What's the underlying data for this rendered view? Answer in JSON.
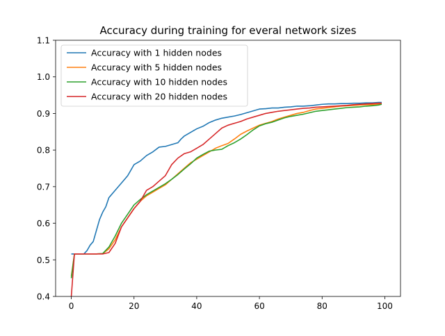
{
  "chart_data": {
    "type": "line",
    "title": "Accuracy during training for everal network sizes",
    "xlabel": "",
    "ylabel": "",
    "xlim": [
      -5,
      105
    ],
    "ylim": [
      0.4,
      1.1
    ],
    "x_ticks": [
      0,
      20,
      40,
      60,
      80,
      100
    ],
    "y_ticks": [
      0.4,
      0.5,
      0.6,
      0.7,
      0.8,
      0.9,
      1.0,
      1.1
    ],
    "x_tick_labels": [
      "0",
      "20",
      "40",
      "60",
      "80",
      "100"
    ],
    "y_tick_labels": [
      "0.4",
      "0.5",
      "0.6",
      "0.7",
      "0.8",
      "0.9",
      "1.0",
      "1.1"
    ],
    "grid": false,
    "legend_position": "upper-left",
    "series": [
      {
        "name": "Accuracy with 1 hidden nodes",
        "color": "#1f77b4",
        "points": [
          [
            0,
            0.516
          ],
          [
            2,
            0.516
          ],
          [
            4,
            0.516
          ],
          [
            5,
            0.525
          ],
          [
            6,
            0.54
          ],
          [
            7,
            0.55
          ],
          [
            8,
            0.58
          ],
          [
            9,
            0.61
          ],
          [
            10,
            0.63
          ],
          [
            11,
            0.645
          ],
          [
            12,
            0.67
          ],
          [
            14,
            0.69
          ],
          [
            16,
            0.71
          ],
          [
            18,
            0.73
          ],
          [
            19,
            0.745
          ],
          [
            20,
            0.76
          ],
          [
            22,
            0.77
          ],
          [
            24,
            0.785
          ],
          [
            26,
            0.795
          ],
          [
            28,
            0.808
          ],
          [
            30,
            0.81
          ],
          [
            32,
            0.815
          ],
          [
            34,
            0.82
          ],
          [
            35,
            0.83
          ],
          [
            36,
            0.838
          ],
          [
            38,
            0.848
          ],
          [
            40,
            0.858
          ],
          [
            42,
            0.865
          ],
          [
            44,
            0.875
          ],
          [
            46,
            0.882
          ],
          [
            48,
            0.887
          ],
          [
            50,
            0.89
          ],
          [
            52,
            0.893
          ],
          [
            54,
            0.897
          ],
          [
            56,
            0.902
          ],
          [
            58,
            0.907
          ],
          [
            60,
            0.912
          ],
          [
            62,
            0.913
          ],
          [
            64,
            0.915
          ],
          [
            66,
            0.915
          ],
          [
            68,
            0.917
          ],
          [
            70,
            0.918
          ],
          [
            72,
            0.92
          ],
          [
            74,
            0.92
          ],
          [
            76,
            0.921
          ],
          [
            78,
            0.923
          ],
          [
            80,
            0.925
          ],
          [
            82,
            0.926
          ],
          [
            84,
            0.926
          ],
          [
            86,
            0.927
          ],
          [
            88,
            0.927
          ],
          [
            90,
            0.928
          ],
          [
            92,
            0.928
          ],
          [
            94,
            0.929
          ],
          [
            96,
            0.929
          ],
          [
            98,
            0.93
          ],
          [
            99,
            0.93
          ]
        ]
      },
      {
        "name": "Accuracy with 5 hidden nodes",
        "color": "#ff7f0e",
        "points": [
          [
            0,
            0.455
          ],
          [
            1,
            0.516
          ],
          [
            3,
            0.516
          ],
          [
            5,
            0.516
          ],
          [
            8,
            0.516
          ],
          [
            10,
            0.517
          ],
          [
            12,
            0.53
          ],
          [
            14,
            0.555
          ],
          [
            16,
            0.59
          ],
          [
            18,
            0.615
          ],
          [
            20,
            0.64
          ],
          [
            22,
            0.66
          ],
          [
            24,
            0.675
          ],
          [
            26,
            0.685
          ],
          [
            28,
            0.695
          ],
          [
            30,
            0.705
          ],
          [
            32,
            0.72
          ],
          [
            34,
            0.735
          ],
          [
            36,
            0.75
          ],
          [
            38,
            0.765
          ],
          [
            40,
            0.775
          ],
          [
            42,
            0.785
          ],
          [
            44,
            0.795
          ],
          [
            46,
            0.805
          ],
          [
            48,
            0.812
          ],
          [
            50,
            0.818
          ],
          [
            52,
            0.83
          ],
          [
            54,
            0.843
          ],
          [
            56,
            0.852
          ],
          [
            58,
            0.86
          ],
          [
            60,
            0.868
          ],
          [
            62,
            0.873
          ],
          [
            64,
            0.878
          ],
          [
            66,
            0.885
          ],
          [
            68,
            0.89
          ],
          [
            70,
            0.895
          ],
          [
            72,
            0.9
          ],
          [
            74,
            0.903
          ],
          [
            76,
            0.908
          ],
          [
            78,
            0.912
          ],
          [
            80,
            0.914
          ],
          [
            82,
            0.916
          ],
          [
            84,
            0.918
          ],
          [
            86,
            0.92
          ],
          [
            88,
            0.921
          ],
          [
            90,
            0.922
          ],
          [
            92,
            0.923
          ],
          [
            94,
            0.924
          ],
          [
            96,
            0.924
          ],
          [
            98,
            0.925
          ],
          [
            99,
            0.926
          ]
        ]
      },
      {
        "name": "Accuracy with 10 hidden nodes",
        "color": "#2ca02c",
        "points": [
          [
            0,
            0.45
          ],
          [
            1,
            0.516
          ],
          [
            3,
            0.516
          ],
          [
            5,
            0.516
          ],
          [
            8,
            0.516
          ],
          [
            10,
            0.517
          ],
          [
            12,
            0.535
          ],
          [
            14,
            0.565
          ],
          [
            16,
            0.6
          ],
          [
            18,
            0.625
          ],
          [
            20,
            0.65
          ],
          [
            22,
            0.665
          ],
          [
            24,
            0.678
          ],
          [
            26,
            0.688
          ],
          [
            28,
            0.698
          ],
          [
            30,
            0.708
          ],
          [
            32,
            0.72
          ],
          [
            34,
            0.733
          ],
          [
            36,
            0.748
          ],
          [
            38,
            0.762
          ],
          [
            40,
            0.778
          ],
          [
            42,
            0.788
          ],
          [
            44,
            0.797
          ],
          [
            46,
            0.8
          ],
          [
            48,
            0.802
          ],
          [
            50,
            0.812
          ],
          [
            52,
            0.82
          ],
          [
            54,
            0.83
          ],
          [
            56,
            0.842
          ],
          [
            58,
            0.855
          ],
          [
            60,
            0.866
          ],
          [
            62,
            0.872
          ],
          [
            64,
            0.876
          ],
          [
            66,
            0.882
          ],
          [
            68,
            0.888
          ],
          [
            70,
            0.892
          ],
          [
            72,
            0.895
          ],
          [
            74,
            0.898
          ],
          [
            76,
            0.902
          ],
          [
            78,
            0.906
          ],
          [
            80,
            0.908
          ],
          [
            82,
            0.91
          ],
          [
            84,
            0.912
          ],
          [
            86,
            0.914
          ],
          [
            88,
            0.916
          ],
          [
            90,
            0.917
          ],
          [
            92,
            0.918
          ],
          [
            94,
            0.92
          ],
          [
            96,
            0.921
          ],
          [
            98,
            0.923
          ],
          [
            99,
            0.925
          ]
        ]
      },
      {
        "name": "Accuracy with 20 hidden nodes",
        "color": "#d62728",
        "points": [
          [
            0,
            0.4
          ],
          [
            1,
            0.516
          ],
          [
            3,
            0.516
          ],
          [
            5,
            0.516
          ],
          [
            8,
            0.516
          ],
          [
            10,
            0.516
          ],
          [
            12,
            0.52
          ],
          [
            14,
            0.545
          ],
          [
            16,
            0.59
          ],
          [
            18,
            0.615
          ],
          [
            20,
            0.64
          ],
          [
            22,
            0.66
          ],
          [
            24,
            0.69
          ],
          [
            26,
            0.7
          ],
          [
            28,
            0.715
          ],
          [
            30,
            0.73
          ],
          [
            32,
            0.76
          ],
          [
            34,
            0.778
          ],
          [
            36,
            0.79
          ],
          [
            38,
            0.795
          ],
          [
            40,
            0.805
          ],
          [
            42,
            0.815
          ],
          [
            44,
            0.83
          ],
          [
            46,
            0.845
          ],
          [
            48,
            0.86
          ],
          [
            50,
            0.868
          ],
          [
            52,
            0.873
          ],
          [
            54,
            0.878
          ],
          [
            56,
            0.885
          ],
          [
            58,
            0.89
          ],
          [
            60,
            0.895
          ],
          [
            62,
            0.9
          ],
          [
            64,
            0.903
          ],
          [
            66,
            0.906
          ],
          [
            68,
            0.908
          ],
          [
            70,
            0.91
          ],
          [
            72,
            0.912
          ],
          [
            74,
            0.914
          ],
          [
            76,
            0.915
          ],
          [
            78,
            0.917
          ],
          [
            80,
            0.918
          ],
          [
            82,
            0.919
          ],
          [
            84,
            0.92
          ],
          [
            86,
            0.921
          ],
          [
            88,
            0.922
          ],
          [
            90,
            0.924
          ],
          [
            92,
            0.925
          ],
          [
            94,
            0.926
          ],
          [
            96,
            0.927
          ],
          [
            98,
            0.928
          ],
          [
            99,
            0.928
          ]
        ]
      }
    ]
  }
}
